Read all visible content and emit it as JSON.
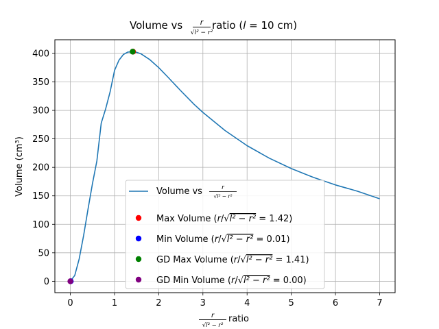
{
  "chart_data": {
    "type": "line",
    "title": {
      "prefix": "Volume vs ",
      "ratio_num": "r",
      "ratio_den": "√l² − r²",
      "suffix": " ratio (",
      "var": "l",
      "suffix2": " = 10 cm)"
    },
    "xlabel": {
      "ratio_num": "r",
      "ratio_den": "√l² − r²",
      "suffix": " ratio"
    },
    "ylabel": "Volume (cm³)",
    "xlim": [
      -0.35,
      7.35
    ],
    "ylim": [
      -20,
      424
    ],
    "xticks": [
      0,
      1,
      2,
      3,
      4,
      5,
      6,
      7
    ],
    "yticks": [
      0,
      50,
      100,
      150,
      200,
      250,
      300,
      350,
      400
    ],
    "grid": true,
    "legend_position": "lower-center",
    "series": [
      {
        "name": "Volume vs r/√(l²−r²)",
        "color": "#1f77b4",
        "x": [
          0,
          0.1,
          0.2,
          0.3,
          0.4,
          0.5,
          0.6,
          0.7,
          0.8,
          0.9,
          1.0,
          1.1,
          1.2,
          1.3,
          1.414,
          1.5,
          1.6,
          1.8,
          2.0,
          2.2,
          2.5,
          2.8,
          3.0,
          3.5,
          4.0,
          4.5,
          5.0,
          5.5,
          6.0,
          6.5,
          7.0
        ],
        "y": [
          0,
          10.3,
          39.1,
          80.4,
          126.6,
          171.4,
          211.0,
          277.8,
          303.0,
          332.4,
          370.2,
          388.0,
          398.0,
          402.4,
          403.1,
          402.0,
          399.2,
          389.0,
          375.0,
          359.0,
          334.4,
          310.7,
          296.5,
          264.7,
          238.1,
          216.2,
          197.9,
          182.4,
          169.2,
          158.1,
          144.9
        ]
      }
    ],
    "markers": [
      {
        "name": "Max Volume",
        "label_prefix": "Max Volume (",
        "value_text": "1.42",
        "x": 1.42,
        "y": 403.1,
        "color": "#ff0000"
      },
      {
        "name": "Min Volume",
        "label_prefix": "Min Volume (",
        "value_text": "0.01",
        "x": 0.01,
        "y": 0.05,
        "color": "#0000ff"
      },
      {
        "name": "GD Max Volume",
        "label_prefix": "GD Max Volume (",
        "value_text": "1.41",
        "x": 1.41,
        "y": 403.1,
        "color": "#008000"
      },
      {
        "name": "GD Min Volume",
        "label_prefix": "GD Min Volume (",
        "value_text": "0.00",
        "x": 0.0,
        "y": 0.0,
        "color": "#800080"
      }
    ]
  }
}
